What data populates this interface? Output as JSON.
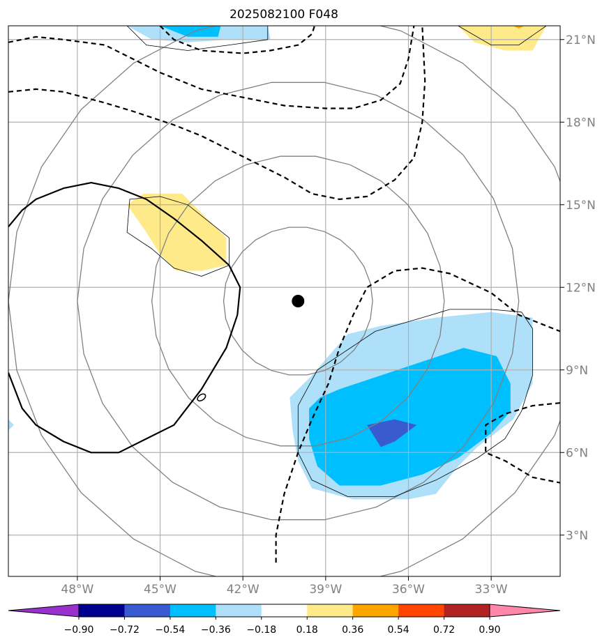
{
  "chart_data": {
    "type": "contour-map",
    "title": "2025082100 F048",
    "xlim": [
      -50.5,
      -30.5
    ],
    "ylim": [
      1.5,
      21.5
    ],
    "xticks": [
      {
        "value": -48,
        "label": "48°W"
      },
      {
        "value": -45,
        "label": "45°W"
      },
      {
        "value": -42,
        "label": "42°W"
      },
      {
        "value": -39,
        "label": "39°W"
      },
      {
        "value": -36,
        "label": "36°W"
      },
      {
        "value": -33,
        "label": "33°W"
      }
    ],
    "yticks": [
      {
        "value": 3,
        "label": "3°N"
      },
      {
        "value": 6,
        "label": "6°N"
      },
      {
        "value": 9,
        "label": "9°N"
      },
      {
        "value": 12,
        "label": "12°N"
      },
      {
        "value": 15,
        "label": "15°N"
      },
      {
        "value": 18,
        "label": "18°N"
      },
      {
        "value": 21,
        "label": "21°N"
      }
    ],
    "grid": true,
    "center_marker": {
      "lon": -40.0,
      "lat": 11.5
    },
    "colorbar": {
      "levels": [
        -0.9,
        -0.72,
        -0.54,
        -0.36,
        -0.18,
        0.18,
        0.36,
        0.54,
        0.72,
        0.9
      ],
      "labels": [
        "−0.90",
        "−0.72",
        "−0.54",
        "−0.36",
        "−0.18",
        "0.18",
        "0.36",
        "0.54",
        "0.72",
        "0.90"
      ],
      "under_color": "#9932cc",
      "over_color": "#ff88aa",
      "colors": [
        "#000090",
        "#3a5bd0",
        "#00bfff",
        "#afe0fa",
        "#ffffff",
        "#ffea8a",
        "#ffa500",
        "#ff4500",
        "#b22222"
      ]
    },
    "filled_contours": [
      {
        "color": "#afe0fa",
        "level": -0.18,
        "points": [
          [
            -38.2,
            10.3
          ],
          [
            -37.0,
            10.6
          ],
          [
            -35.0,
            10.9
          ],
          [
            -33.0,
            11.1
          ],
          [
            -31.5,
            10.9
          ],
          [
            -31.5,
            8.5
          ],
          [
            -32.2,
            7.2
          ],
          [
            -33.5,
            6.2
          ],
          [
            -34.2,
            5.5
          ],
          [
            -35.0,
            4.5
          ],
          [
            -36.0,
            4.3
          ],
          [
            -38.0,
            4.3
          ],
          [
            -39.5,
            4.7
          ],
          [
            -40.0,
            5.7
          ],
          [
            -40.2,
            6.8
          ],
          [
            -40.3,
            8.0
          ],
          [
            -39.5,
            8.8
          ],
          [
            -38.9,
            9.5
          ]
        ]
      },
      {
        "color": "#00bfff",
        "level": -0.36,
        "points": [
          [
            -38.5,
            8.3
          ],
          [
            -37.0,
            8.8
          ],
          [
            -35.5,
            9.3
          ],
          [
            -34.0,
            9.8
          ],
          [
            -32.8,
            9.5
          ],
          [
            -32.3,
            8.5
          ],
          [
            -32.3,
            7.5
          ],
          [
            -33.0,
            6.7
          ],
          [
            -34.2,
            5.8
          ],
          [
            -35.5,
            5.2
          ],
          [
            -37.0,
            4.8
          ],
          [
            -38.5,
            4.8
          ],
          [
            -39.3,
            5.5
          ],
          [
            -39.6,
            6.5
          ],
          [
            -39.6,
            7.6
          ],
          [
            -39.2,
            8.0
          ]
        ]
      },
      {
        "color": "#3a5bd0",
        "level": -0.54,
        "points": [
          [
            -37.5,
            7.0
          ],
          [
            -36.5,
            7.2
          ],
          [
            -35.7,
            7.0
          ],
          [
            -36.5,
            6.4
          ],
          [
            -37.0,
            6.2
          ]
        ]
      },
      {
        "color": "#afe0fa",
        "level": -0.18,
        "points": [
          [
            -46.2,
            21.5
          ],
          [
            -45.3,
            21.0
          ],
          [
            -44.0,
            20.9
          ],
          [
            -42.5,
            21.0
          ],
          [
            -41.0,
            21.0
          ],
          [
            -41.1,
            21.5
          ]
        ]
      },
      {
        "color": "#00bfff",
        "level": -0.36,
        "points": [
          [
            -45.0,
            21.5
          ],
          [
            -44.0,
            21.1
          ],
          [
            -42.9,
            21.1
          ],
          [
            -42.8,
            21.5
          ]
        ]
      },
      {
        "color": "#ffea8a",
        "level": 0.18,
        "points": [
          [
            -46.2,
            15.0
          ],
          [
            -45.6,
            15.4
          ],
          [
            -44.2,
            15.4
          ],
          [
            -43.8,
            15.0
          ],
          [
            -43.0,
            14.2
          ],
          [
            -42.6,
            13.8
          ],
          [
            -42.6,
            12.8
          ],
          [
            -43.5,
            12.6
          ],
          [
            -44.4,
            12.6
          ],
          [
            -45.0,
            13.2
          ],
          [
            -45.5,
            14.0
          ]
        ]
      },
      {
        "color": "#ffea8a",
        "level": 0.18,
        "points": [
          [
            -34.2,
            21.5
          ],
          [
            -33.6,
            20.9
          ],
          [
            -32.5,
            20.6
          ],
          [
            -31.5,
            20.6
          ],
          [
            -31.0,
            21.5
          ]
        ]
      },
      {
        "color": "#ffa500",
        "level": 0.36,
        "points": [
          [
            -32.2,
            21.5
          ],
          [
            -32.0,
            21.4
          ],
          [
            -31.8,
            21.5
          ]
        ]
      },
      {
        "color": "#afe0fa",
        "level": -0.18,
        "points": [
          [
            -50.5,
            7.2
          ],
          [
            -50.3,
            7.0
          ],
          [
            -50.5,
            6.8
          ]
        ]
      }
    ],
    "thin_contours": [
      [
        [
          -37.2,
          10.4
        ],
        [
          -35.5,
          10.9
        ],
        [
          -34.5,
          11.2
        ],
        [
          -33.0,
          11.2
        ],
        [
          -31.9,
          11.1
        ],
        [
          -31.5,
          10.5
        ],
        [
          -31.5,
          8.8
        ],
        [
          -31.9,
          7.5
        ],
        [
          -32.5,
          6.5
        ],
        [
          -33.5,
          5.8
        ],
        [
          -35.0,
          5.0
        ],
        [
          -36.5,
          4.4
        ],
        [
          -38.2,
          4.4
        ],
        [
          -39.5,
          5.0
        ],
        [
          -40.0,
          6.0
        ],
        [
          -40.0,
          7.7
        ],
        [
          -39.3,
          9.0
        ]
      ],
      [
        [
          -46.2,
          21.5
        ],
        [
          -45.5,
          20.8
        ],
        [
          -44.0,
          20.6
        ],
        [
          -42.5,
          20.8
        ],
        [
          -41.1,
          21.0
        ],
        [
          -41.1,
          21.5
        ]
      ],
      [
        [
          -46.1,
          15.2
        ],
        [
          -45.0,
          15.3
        ],
        [
          -44.0,
          15.0
        ],
        [
          -43.0,
          14.2
        ],
        [
          -42.5,
          13.8
        ],
        [
          -42.5,
          12.8
        ],
        [
          -43.5,
          12.4
        ],
        [
          -44.5,
          12.7
        ],
        [
          -45.3,
          13.4
        ],
        [
          -46.2,
          14.0
        ]
      ],
      [
        [
          -34.2,
          21.5
        ],
        [
          -33.0,
          20.8
        ],
        [
          -32.0,
          20.8
        ],
        [
          -31.0,
          21.5
        ]
      ]
    ],
    "solid_contours": [
      [
        [
          -50.5,
          14.2
        ],
        [
          -50.0,
          14.8
        ],
        [
          -49.5,
          15.2
        ],
        [
          -48.5,
          15.6
        ],
        [
          -47.5,
          15.8
        ],
        [
          -46.5,
          15.6
        ],
        [
          -45.5,
          15.2
        ],
        [
          -44.5,
          14.5
        ],
        [
          -43.5,
          13.7
        ],
        [
          -42.5,
          12.8
        ],
        [
          -42.1,
          12.0
        ],
        [
          -42.2,
          11.0
        ],
        [
          -42.6,
          9.8
        ],
        [
          -43.5,
          8.3
        ],
        [
          -44.5,
          7.0
        ],
        [
          -45.5,
          6.5
        ],
        [
          -46.5,
          6.0
        ],
        [
          -47.5,
          6.0
        ],
        [
          -48.5,
          6.4
        ],
        [
          -49.5,
          7.0
        ],
        [
          -50.0,
          7.6
        ],
        [
          -50.5,
          8.9
        ]
      ]
    ],
    "dashed_contours": [
      [
        [
          -50.5,
          20.9
        ],
        [
          -49.5,
          21.1
        ],
        [
          -48.5,
          21.0
        ],
        [
          -47.0,
          20.8
        ],
        [
          -46.0,
          20.3
        ],
        [
          -45.0,
          19.8
        ],
        [
          -43.5,
          19.2
        ],
        [
          -42.0,
          18.9
        ],
        [
          -40.5,
          18.6
        ],
        [
          -39.0,
          18.5
        ],
        [
          -38.0,
          18.5
        ],
        [
          -37.0,
          18.8
        ],
        [
          -36.3,
          19.4
        ],
        [
          -36.0,
          20.3
        ],
        [
          -35.8,
          21.5
        ]
      ],
      [
        [
          -50.5,
          19.1
        ],
        [
          -49.5,
          19.2
        ],
        [
          -48.5,
          19.1
        ],
        [
          -47.0,
          18.7
        ],
        [
          -46.0,
          18.4
        ],
        [
          -44.5,
          17.9
        ],
        [
          -43.5,
          17.5
        ],
        [
          -42.5,
          17.0
        ],
        [
          -41.5,
          16.5
        ],
        [
          -40.5,
          16.0
        ],
        [
          -39.5,
          15.4
        ],
        [
          -38.5,
          15.2
        ],
        [
          -37.5,
          15.3
        ],
        [
          -36.5,
          15.9
        ],
        [
          -35.8,
          16.7
        ],
        [
          -35.5,
          18.0
        ],
        [
          -35.4,
          19.5
        ],
        [
          -35.5,
          21.5
        ]
      ],
      [
        [
          -45.0,
          21.5
        ],
        [
          -44.5,
          21.0
        ],
        [
          -43.5,
          20.6
        ],
        [
          -42.0,
          20.5
        ],
        [
          -41.0,
          20.6
        ],
        [
          -40.0,
          20.8
        ],
        [
          -39.5,
          21.2
        ],
        [
          -39.4,
          21.5
        ]
      ],
      [
        [
          -40.8,
          2.0
        ],
        [
          -40.8,
          3.0
        ],
        [
          -40.5,
          4.5
        ],
        [
          -40.0,
          6.0
        ],
        [
          -39.5,
          7.2
        ],
        [
          -38.9,
          8.5
        ],
        [
          -38.5,
          9.8
        ],
        [
          -38.0,
          11.0
        ],
        [
          -37.5,
          12.0
        ],
        [
          -36.5,
          12.6
        ],
        [
          -35.5,
          12.7
        ],
        [
          -34.5,
          12.5
        ],
        [
          -33.0,
          11.8
        ],
        [
          -32.0,
          11.0
        ],
        [
          -31.0,
          10.6
        ],
        [
          -30.5,
          10.4
        ]
      ],
      [
        [
          -30.5,
          7.8
        ],
        [
          -31.5,
          7.7
        ],
        [
          -32.5,
          7.4
        ],
        [
          -33.2,
          7.0
        ],
        [
          -33.2,
          6.0
        ],
        [
          -32.5,
          5.7
        ],
        [
          -31.5,
          5.1
        ],
        [
          -30.5,
          4.9
        ]
      ]
    ],
    "grey_circles": [
      {
        "center": [
          -40.0,
          11.5
        ],
        "radius_deg": 2.7
      },
      {
        "center": [
          -40.0,
          11.5
        ],
        "radius_deg": 5.3
      },
      {
        "center": [
          -40.0,
          11.5
        ],
        "radius_deg": 8.0
      },
      {
        "center": [
          -40.0,
          11.5
        ],
        "radius_deg": 10.5
      }
    ],
    "small_ellipse": {
      "lon": -43.5,
      "lat": 8.0
    }
  }
}
